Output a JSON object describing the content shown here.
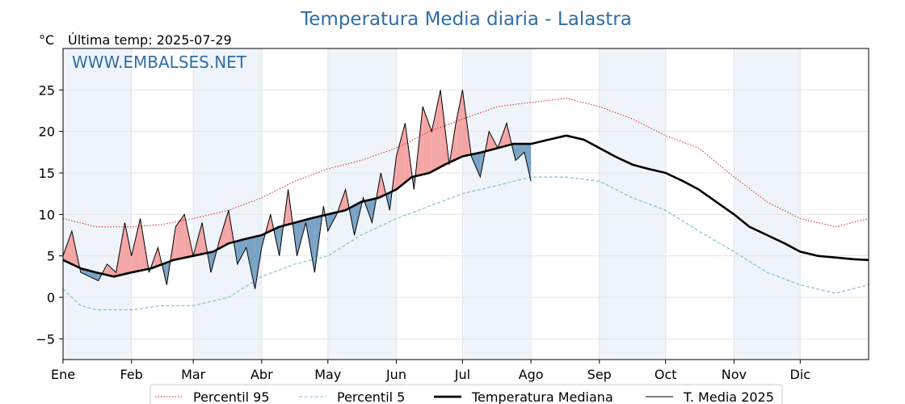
{
  "header": {
    "title": "Temperatura Media diaria - Lalastra",
    "unit": "°C",
    "last_temp": "Última temp: 2025-07-29",
    "watermark": "WWW.EMBALSES.NET"
  },
  "colors": {
    "p95": "#e8191f",
    "p5": "#7fbfd6",
    "median": "#000000",
    "current": "#000000",
    "above_fill": "#f4a6a6",
    "above_strong": "#e33b3b",
    "below_fill": "#7aa3c6",
    "below_strong": "#1f5f99",
    "month_band": "#eef4fa",
    "title": "#2f6ea6"
  },
  "chart_data": {
    "type": "line",
    "title": "Temperatura Media diaria - Lalastra",
    "ylabel": "°C",
    "ylim": [
      -7.5,
      30
    ],
    "yticks": [
      -5,
      0,
      5,
      10,
      15,
      20,
      25
    ],
    "xlim": [
      0,
      365
    ],
    "months": [
      "Ene",
      "Feb",
      "Mar",
      "Abr",
      "May",
      "Jun",
      "Jul",
      "Ago",
      "Sep",
      "Oct",
      "Nov",
      "Dic"
    ],
    "month_starts": [
      0,
      31,
      59,
      90,
      120,
      151,
      181,
      212,
      243,
      273,
      304,
      334
    ],
    "grid": true,
    "legend_position": "bottom",
    "series": [
      {
        "name": "Percentil 95",
        "style": "dotted",
        "x": [
          0,
          15,
          31,
          45,
          59,
          75,
          90,
          105,
          120,
          135,
          151,
          166,
          181,
          197,
          212,
          228,
          243,
          258,
          273,
          288,
          304,
          319,
          334,
          350,
          365
        ],
        "y": [
          9.5,
          8.5,
          8.5,
          8.8,
          9.5,
          10.5,
          12,
          14,
          15.5,
          16.5,
          18,
          20,
          21.5,
          23,
          23.5,
          24,
          23,
          21.5,
          19.5,
          18,
          14.5,
          11.5,
          9.5,
          8.5,
          9.5
        ]
      },
      {
        "name": "Percentil 5",
        "style": "dashed",
        "x": [
          0,
          8,
          15,
          31,
          45,
          59,
          75,
          90,
          105,
          120,
          135,
          151,
          166,
          181,
          197,
          212,
          228,
          243,
          258,
          273,
          288,
          304,
          319,
          334,
          350,
          365
        ],
        "y": [
          1,
          -1,
          -1.5,
          -1.5,
          -1,
          -1,
          0,
          2.5,
          4,
          5,
          7.5,
          9.5,
          11,
          12.5,
          13.5,
          14.5,
          14.5,
          14,
          12,
          10.5,
          8,
          5.5,
          3,
          1.5,
          0.5,
          1.5
        ]
      },
      {
        "name": "Temperatura Mediana",
        "style": "thick",
        "x": [
          0,
          8,
          15,
          23,
          31,
          40,
          50,
          59,
          68,
          75,
          82,
          90,
          98,
          105,
          112,
          120,
          128,
          135,
          143,
          151,
          158,
          166,
          173,
          181,
          190,
          197,
          204,
          212,
          220,
          228,
          236,
          243,
          250,
          258,
          265,
          273,
          281,
          288,
          296,
          304,
          311,
          319,
          327,
          334,
          342,
          350,
          358,
          365
        ],
        "y": [
          4.5,
          3.5,
          3,
          2.5,
          3,
          3.5,
          4.5,
          5,
          5.5,
          6.5,
          7,
          7.5,
          8.5,
          9,
          9.5,
          10,
          10.5,
          11.5,
          12,
          13,
          14.5,
          15,
          16,
          17,
          17.5,
          18,
          18.5,
          18.5,
          19,
          19.5,
          19,
          18,
          17,
          16,
          15.5,
          15,
          14,
          13,
          11.5,
          10,
          8.5,
          7.5,
          6.5,
          5.5,
          5,
          4.8,
          4.6,
          4.5
        ]
      },
      {
        "name": "T. Media 2025",
        "style": "thin",
        "x": [
          0,
          4,
          8,
          12,
          16,
          20,
          24,
          28,
          31,
          35,
          39,
          43,
          47,
          51,
          55,
          59,
          63,
          67,
          71,
          75,
          79,
          83,
          87,
          90,
          94,
          98,
          102,
          106,
          110,
          114,
          118,
          120,
          124,
          128,
          132,
          136,
          140,
          144,
          148,
          151,
          155,
          159,
          163,
          167,
          171,
          175,
          178,
          181,
          185,
          189,
          193,
          197,
          201,
          205,
          209,
          212
        ],
        "y": [
          5,
          8,
          3,
          2.5,
          2,
          4,
          3,
          9,
          5,
          9.5,
          3,
          6,
          1.5,
          8.5,
          10,
          5,
          9,
          3,
          7,
          10.5,
          4,
          6,
          1,
          6,
          10,
          5,
          13,
          5,
          9,
          3,
          11,
          8,
          10,
          13,
          7.5,
          12,
          9,
          15,
          10.5,
          17,
          21,
          13,
          23,
          20,
          25,
          16,
          21,
          25,
          17,
          14.5,
          20,
          18,
          21,
          16.5,
          17.5,
          14
        ]
      }
    ]
  }
}
